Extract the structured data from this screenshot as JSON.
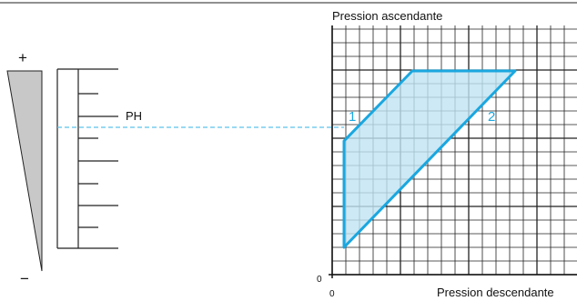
{
  "left": {
    "plus": "+",
    "minus": "−",
    "ph": "PH"
  },
  "graph": {
    "y_title": "Pression ascendante",
    "x_title": "Pression descendante",
    "y_zero": "0",
    "x_zero": "0",
    "label_1": "1",
    "label_2": "2"
  }
}
